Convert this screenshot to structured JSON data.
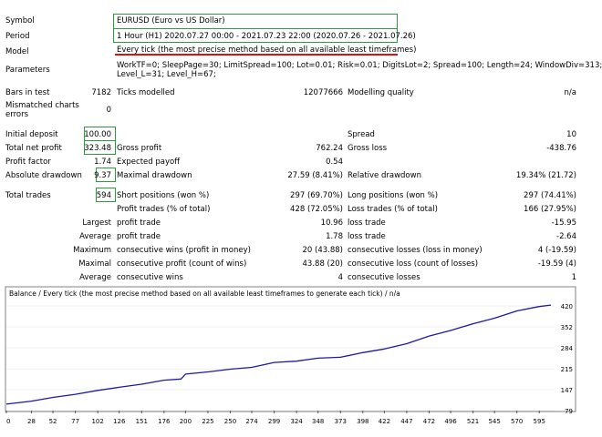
{
  "report": {
    "symbol_label": "Symbol",
    "symbol": "EURUSD (Euro vs US Dollar)",
    "period_label": "Period",
    "period": "1 Hour (H1) 2020.07.27 00:00 - 2021.07.23 22:00 (2020.07.26 - 2021.07.26)",
    "model_label": "Model",
    "model": "Every tick (the most precise method based on all available least timeframes)",
    "parameters_label": "Parameters",
    "parameters_line1": "WorkTF=0; SleepPage=30; LimitSpread=100; Lot=0.01; Risk=0.01; DigitsLot=2; Spread=100; Length=24; WindowDiv=313;",
    "parameters_line2": "Level_L=31; Level_H=67;",
    "bars_label": "Bars in test",
    "bars": "7182",
    "ticks_label": "Ticks modelled",
    "ticks": "12077666",
    "quality_label": "Modelling quality",
    "quality": "n/a",
    "mismatch_label_1": "Mismatched charts",
    "mismatch_label_2": "errors",
    "mismatch": "0",
    "initial_deposit_label": "Initial deposit",
    "initial_deposit": "100.00",
    "spread_label": "Spread",
    "spread": "10",
    "net_profit_label": "Total net profit",
    "net_profit": "323.48",
    "gross_profit_label": "Gross profit",
    "gross_profit": "762.24",
    "gross_loss_label": "Gross loss",
    "gross_loss": "-438.76",
    "profit_factor_label": "Profit factor",
    "profit_factor": "1.74",
    "expected_payoff_label": "Expected payoff",
    "expected_payoff": "0.54",
    "abs_dd_label": "Absolute drawdown",
    "abs_dd": "9.37",
    "max_dd_label": "Maximal drawdown",
    "max_dd": "27.59 (8.41%)",
    "rel_dd_label": "Relative drawdown",
    "rel_dd": "19.34% (21.72)",
    "total_trades_label": "Total trades",
    "total_trades": "594",
    "short_label": "Short positions (won %)",
    "short": "297 (69.70%)",
    "long_label": "Long positions (won %)",
    "long": "297 (74.41%)",
    "profit_trades_label": "Profit trades (% of total)",
    "profit_trades": "428 (72.05%)",
    "loss_trades_label": "Loss trades (% of total)",
    "loss_trades": "166 (27.95%)",
    "largest_label": "Largest",
    "largest_profit_label": "profit trade",
    "largest_profit": "10.96",
    "largest_loss_label": "loss trade",
    "largest_loss": "-15.95",
    "average_label": "Average",
    "average_profit_label": "profit trade",
    "average_profit": "1.78",
    "average_loss_label": "loss trade",
    "average_loss": "-2.64",
    "maximum_label": "Maximum",
    "max_cons_wins_label": "consecutive wins (profit in money)",
    "max_cons_wins": "20 (43.88)",
    "max_cons_losses_label": "consecutive losses (loss in money)",
    "max_cons_losses": "4 (-19.59)",
    "maximal_label": "Maximal",
    "maximal_profit_label": "consecutive profit (count of wins)",
    "maximal_profit": "43.88 (20)",
    "maximal_loss_label": "consecutive loss (count of losses)",
    "maximal_loss": "-19.59 (4)",
    "average2_label": "Average",
    "avg_cons_wins_label": "consecutive wins",
    "avg_cons_wins": "4",
    "avg_cons_losses_label": "consecutive losses",
    "avg_cons_losses": "1"
  },
  "chart_data": {
    "type": "line",
    "title": "Balance / Every tick (the most precise method based on all available least timeframes to generate each tick) / n/a",
    "xticks": [
      0,
      28,
      52,
      77,
      102,
      126,
      151,
      176,
      200,
      225,
      250,
      274,
      299,
      324,
      348,
      373,
      398,
      422,
      447,
      472,
      496,
      521,
      545,
      570,
      595
    ],
    "yticks": [
      79,
      147,
      215,
      284,
      352,
      420
    ],
    "xlim": [
      0,
      608
    ],
    "ylim": [
      79,
      438
    ],
    "line_color": "#1a1aa8",
    "series": [
      {
        "name": "Balance",
        "x": [
          0,
          28,
          52,
          77,
          102,
          126,
          151,
          176,
          195,
          200,
          225,
          250,
          274,
          299,
          324,
          348,
          373,
          398,
          422,
          447,
          472,
          496,
          521,
          545,
          570,
          595,
          608
        ],
        "y": [
          100,
          110,
          122,
          132,
          145,
          155,
          165,
          178,
          182,
          198,
          205,
          214,
          220,
          236,
          240,
          250,
          253,
          268,
          280,
          297,
          322,
          340,
          362,
          380,
          404,
          418,
          423
        ]
      }
    ]
  }
}
